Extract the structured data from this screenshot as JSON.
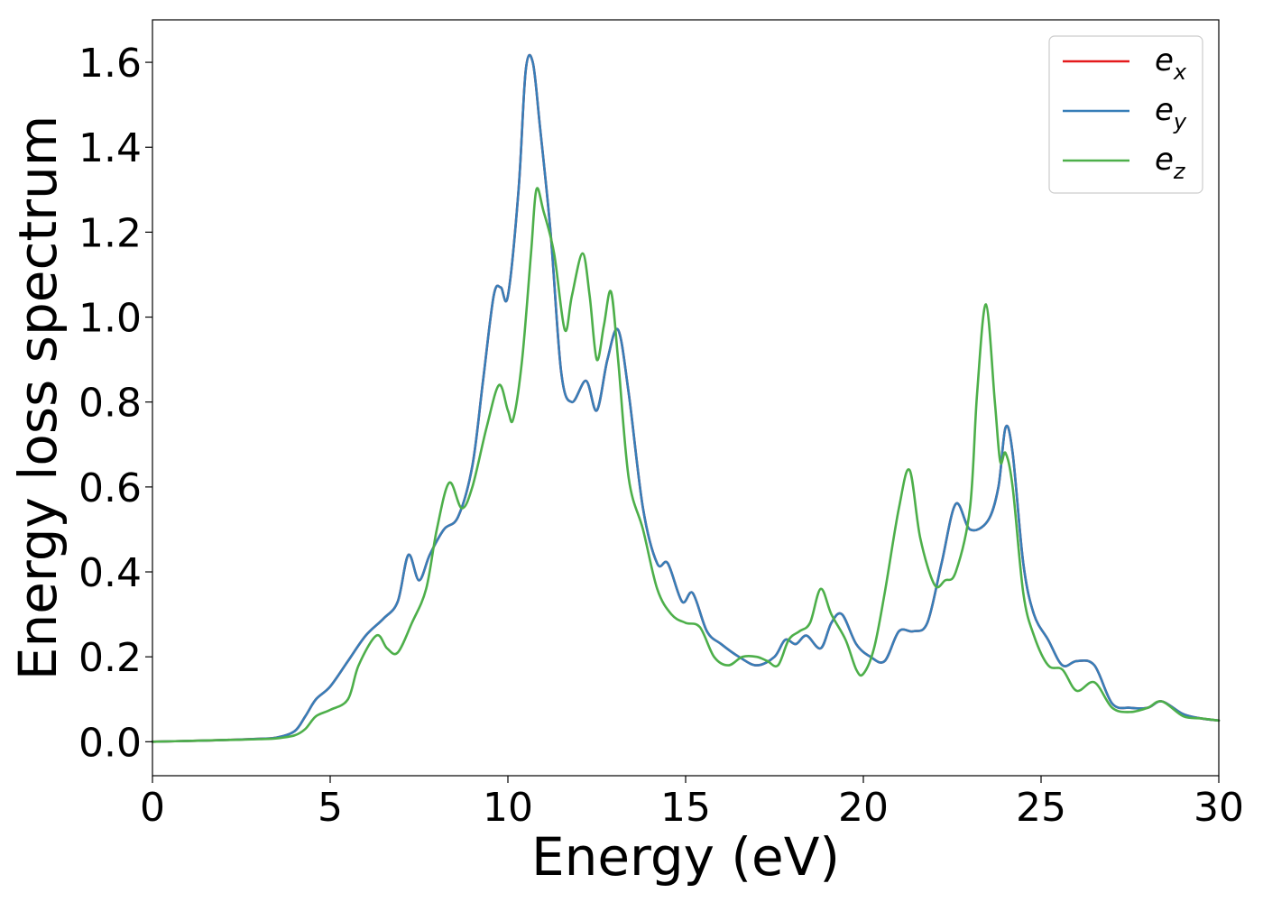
{
  "chart_data": {
    "type": "line",
    "title": "",
    "xlabel": "Energy (eV)",
    "ylabel": "Energy loss spectrum",
    "xlim": [
      0,
      30
    ],
    "ylim": [
      -0.08,
      1.7
    ],
    "xticks": [
      0,
      5,
      10,
      15,
      20,
      25,
      30
    ],
    "yticks": [
      0.0,
      0.2,
      0.4,
      0.6,
      0.8,
      1.0,
      1.2,
      1.4,
      1.6
    ],
    "xtick_labels": [
      "0",
      "5",
      "10",
      "15",
      "20",
      "25",
      "30"
    ],
    "ytick_labels": [
      "0.0",
      "0.2",
      "0.4",
      "0.6",
      "0.8",
      "1.0",
      "1.2",
      "1.4",
      "1.6"
    ],
    "grid": false,
    "legend_position": "top-right",
    "colors": {
      "ex": "#e41a1c",
      "ey": "#377eb8",
      "ez": "#4daf4a"
    },
    "series": [
      {
        "name": "e_x",
        "legend_base": "e",
        "legend_sub": "x",
        "color": "#e41a1c",
        "x": [
          0,
          1,
          2,
          3,
          3.5,
          4,
          4.3,
          4.6,
          5,
          5.5,
          6,
          6.5,
          6.9,
          7.2,
          7.5,
          7.8,
          8.2,
          8.6,
          9,
          9.3,
          9.6,
          9.8,
          10,
          10.3,
          10.5,
          10.7,
          10.9,
          11.2,
          11.5,
          11.8,
          12.2,
          12.5,
          12.8,
          13.1,
          13.4,
          13.8,
          14.2,
          14.5,
          14.9,
          15.2,
          15.6,
          16.0,
          16.5,
          17.0,
          17.5,
          17.8,
          18.1,
          18.4,
          18.8,
          19.1,
          19.4,
          19.8,
          20.2,
          20.6,
          21,
          21.4,
          21.8,
          22.2,
          22.6,
          23,
          23.5,
          23.8,
          24.0,
          24.2,
          24.5,
          24.8,
          25.2,
          25.6,
          26.0,
          26.5,
          27,
          27.5,
          28,
          28.4,
          29,
          29.5,
          30
        ],
        "y": [
          0,
          0.002,
          0.004,
          0.007,
          0.01,
          0.025,
          0.06,
          0.1,
          0.13,
          0.19,
          0.25,
          0.29,
          0.33,
          0.44,
          0.38,
          0.44,
          0.5,
          0.53,
          0.65,
          0.85,
          1.05,
          1.07,
          1.05,
          1.3,
          1.58,
          1.6,
          1.45,
          1.2,
          0.87,
          0.8,
          0.85,
          0.78,
          0.9,
          0.97,
          0.82,
          0.55,
          0.42,
          0.42,
          0.33,
          0.35,
          0.26,
          0.23,
          0.2,
          0.18,
          0.2,
          0.24,
          0.23,
          0.25,
          0.22,
          0.28,
          0.3,
          0.23,
          0.2,
          0.19,
          0.26,
          0.26,
          0.28,
          0.42,
          0.56,
          0.5,
          0.52,
          0.6,
          0.74,
          0.68,
          0.42,
          0.3,
          0.24,
          0.18,
          0.19,
          0.18,
          0.09,
          0.08,
          0.08,
          0.095,
          0.065,
          0.055,
          0.05
        ]
      },
      {
        "name": "e_y",
        "legend_base": "e",
        "legend_sub": "y",
        "color": "#377eb8",
        "x": [
          0,
          1,
          2,
          3,
          3.5,
          4,
          4.3,
          4.6,
          5,
          5.5,
          6,
          6.5,
          6.9,
          7.2,
          7.5,
          7.8,
          8.2,
          8.6,
          9,
          9.3,
          9.6,
          9.8,
          10,
          10.3,
          10.5,
          10.7,
          10.9,
          11.2,
          11.5,
          11.8,
          12.2,
          12.5,
          12.8,
          13.1,
          13.4,
          13.8,
          14.2,
          14.5,
          14.9,
          15.2,
          15.6,
          16.0,
          16.5,
          17.0,
          17.5,
          17.8,
          18.1,
          18.4,
          18.8,
          19.1,
          19.4,
          19.8,
          20.2,
          20.6,
          21,
          21.4,
          21.8,
          22.2,
          22.6,
          23,
          23.5,
          23.8,
          24.0,
          24.2,
          24.5,
          24.8,
          25.2,
          25.6,
          26.0,
          26.5,
          27,
          27.5,
          28,
          28.4,
          29,
          29.5,
          30
        ],
        "y": [
          0,
          0.002,
          0.004,
          0.007,
          0.01,
          0.025,
          0.06,
          0.1,
          0.13,
          0.19,
          0.25,
          0.29,
          0.33,
          0.44,
          0.38,
          0.44,
          0.5,
          0.53,
          0.65,
          0.85,
          1.05,
          1.07,
          1.05,
          1.3,
          1.58,
          1.6,
          1.45,
          1.2,
          0.87,
          0.8,
          0.85,
          0.78,
          0.9,
          0.97,
          0.82,
          0.55,
          0.42,
          0.42,
          0.33,
          0.35,
          0.26,
          0.23,
          0.2,
          0.18,
          0.2,
          0.24,
          0.23,
          0.25,
          0.22,
          0.28,
          0.3,
          0.23,
          0.2,
          0.19,
          0.26,
          0.26,
          0.28,
          0.42,
          0.56,
          0.5,
          0.52,
          0.6,
          0.74,
          0.68,
          0.42,
          0.3,
          0.24,
          0.18,
          0.19,
          0.18,
          0.09,
          0.08,
          0.08,
          0.095,
          0.065,
          0.055,
          0.05
        ]
      },
      {
        "name": "e_z",
        "legend_base": "e",
        "legend_sub": "z",
        "color": "#4daf4a",
        "x": [
          0,
          1,
          2,
          3,
          3.5,
          4,
          4.3,
          4.6,
          5,
          5.5,
          5.8,
          6.3,
          6.6,
          6.9,
          7.3,
          7.7,
          8.0,
          8.35,
          8.7,
          9.0,
          9.4,
          9.75,
          10.0,
          10.15,
          10.4,
          10.65,
          10.8,
          11.0,
          11.3,
          11.6,
          11.8,
          12.1,
          12.3,
          12.5,
          12.7,
          12.9,
          13.1,
          13.4,
          13.8,
          14.2,
          14.6,
          15.0,
          15.4,
          15.8,
          16.2,
          16.6,
          17.0,
          17.3,
          17.6,
          17.9,
          18.2,
          18.5,
          18.8,
          19.1,
          19.5,
          19.8,
          20.0,
          20.3,
          20.6,
          21,
          21.3,
          21.6,
          22,
          22.3,
          22.6,
          23,
          23.2,
          23.45,
          23.7,
          23.85,
          24,
          24.2,
          24.5,
          24.8,
          25.2,
          25.6,
          26.0,
          26.5,
          27,
          27.5,
          28,
          28.4,
          29,
          29.5,
          30
        ],
        "y": [
          0,
          0.002,
          0.004,
          0.006,
          0.008,
          0.015,
          0.03,
          0.06,
          0.075,
          0.1,
          0.18,
          0.25,
          0.22,
          0.21,
          0.28,
          0.36,
          0.5,
          0.61,
          0.55,
          0.6,
          0.74,
          0.84,
          0.78,
          0.76,
          0.9,
          1.15,
          1.3,
          1.25,
          1.15,
          0.97,
          1.05,
          1.15,
          1.05,
          0.9,
          0.98,
          1.06,
          0.9,
          0.62,
          0.5,
          0.36,
          0.3,
          0.28,
          0.27,
          0.2,
          0.18,
          0.2,
          0.2,
          0.19,
          0.18,
          0.24,
          0.26,
          0.28,
          0.36,
          0.3,
          0.24,
          0.17,
          0.16,
          0.22,
          0.35,
          0.55,
          0.64,
          0.48,
          0.37,
          0.38,
          0.4,
          0.55,
          0.82,
          1.03,
          0.8,
          0.66,
          0.68,
          0.6,
          0.35,
          0.25,
          0.18,
          0.17,
          0.12,
          0.14,
          0.08,
          0.07,
          0.08,
          0.095,
          0.06,
          0.055,
          0.05
        ]
      }
    ]
  }
}
